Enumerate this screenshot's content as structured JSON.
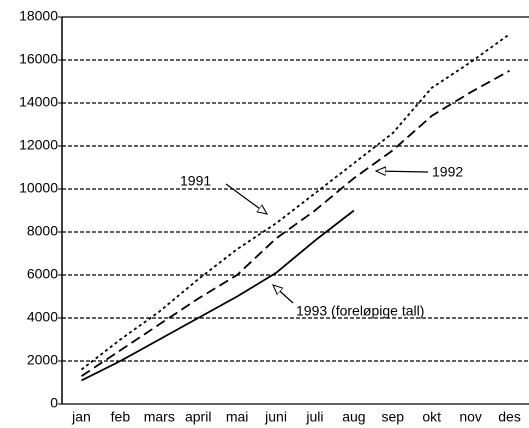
{
  "chart_data": {
    "type": "line",
    "categories": [
      "jan",
      "feb",
      "mars",
      "april",
      "mai",
      "juni",
      "juli",
      "aug",
      "sep",
      "okt",
      "nov",
      "des"
    ],
    "series": [
      {
        "name": "1991",
        "color": "#000000",
        "values": [
          1600,
          3000,
          4300,
          5800,
          7200,
          8400,
          9800,
          11200,
          12600,
          14700,
          15900,
          17200
        ]
      },
      {
        "name": "1992",
        "color": "#000000",
        "values": [
          1300,
          2500,
          3700,
          4900,
          6000,
          7700,
          9000,
          10500,
          11800,
          13400,
          14500,
          15500
        ]
      },
      {
        "name": "1993 (foreløpige tall)",
        "color": "#000000",
        "values": [
          1100,
          2000,
          3000,
          4000,
          5000,
          6100,
          7600,
          9000,
          null,
          null,
          null,
          null
        ]
      }
    ],
    "ylim": [
      0,
      18000
    ],
    "yticks": [
      0,
      2000,
      4000,
      6000,
      8000,
      10000,
      12000,
      14000,
      16000,
      18000
    ],
    "grid": true
  }
}
